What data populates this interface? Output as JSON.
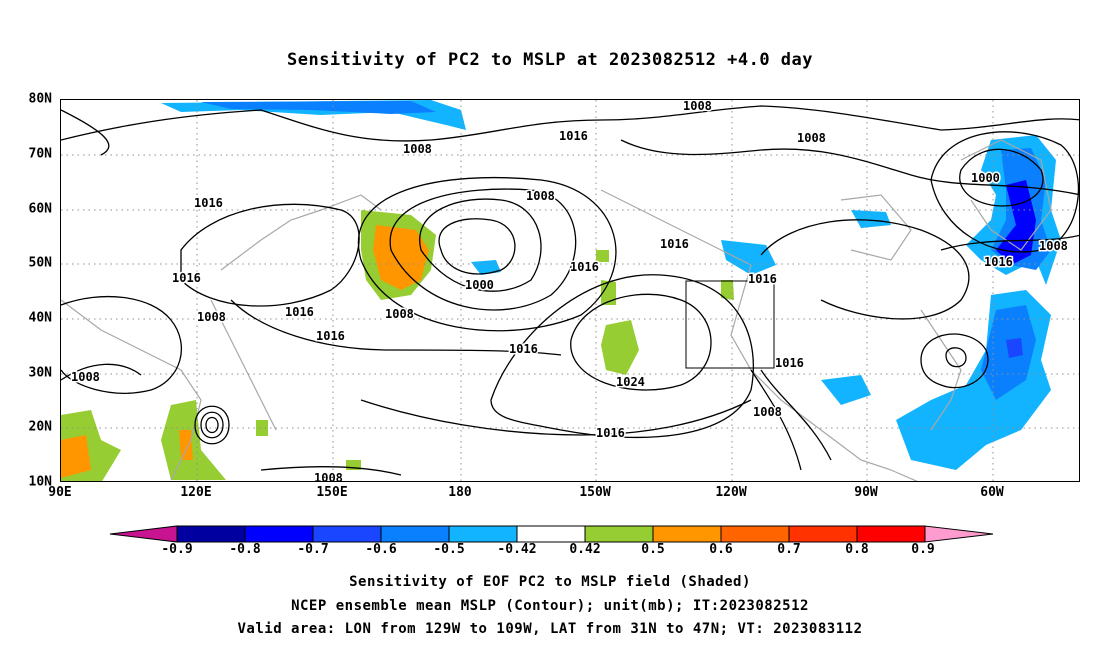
{
  "title": "Sensitivity of PC2 to MSLP at 2023082512 +4.0 day",
  "map": {
    "lat_labels": [
      "80N",
      "70N",
      "60N",
      "50N",
      "40N",
      "30N",
      "20N",
      "10N"
    ],
    "lon_labels": [
      "90E",
      "120E",
      "150E",
      "180",
      "150W",
      "120W",
      "90W",
      "60W"
    ],
    "contour_labels": [
      "1008",
      "1016",
      "1008",
      "1016",
      "1008",
      "1016",
      "1008",
      "1016",
      "1016",
      "1008",
      "1000",
      "1008",
      "1016",
      "1016",
      "1016",
      "1024",
      "1016",
      "1016",
      "1008",
      "1016",
      "1000",
      "1008",
      "1016",
      "1008",
      "1008"
    ],
    "contour_interval_mb": 4,
    "valid_box": {
      "lon": [
        -129,
        -109
      ],
      "lat": [
        31,
        47
      ]
    },
    "colors": {
      "coast": "#a8a8a8",
      "contour": "#000000",
      "grid": "#909090"
    }
  },
  "colorbar": {
    "labels": [
      "-0.9",
      "-0.8",
      "-0.7",
      "-0.6",
      "-0.5",
      "-0.42",
      "0.42",
      "0.5",
      "0.6",
      "0.7",
      "0.8",
      "0.9"
    ],
    "colors": [
      "#c81491",
      "#0000a0",
      "#0000ff",
      "#1a46ff",
      "#0a80ff",
      "#12b4ff",
      "#ffffff",
      "#96cd32",
      "#ff9600",
      "#ff6400",
      "#ff3200",
      "#ff0000",
      "#ff9ccf"
    ]
  },
  "captions": [
    "Sensitivity of EOF PC2 to MSLP field (Shaded)",
    "NCEP ensemble mean MSLP (Contour); unit(mb); IT:2023082512",
    "Valid area: LON from 129W to 109W, LAT from 31N to 47N; VT: 2023083112"
  ]
}
